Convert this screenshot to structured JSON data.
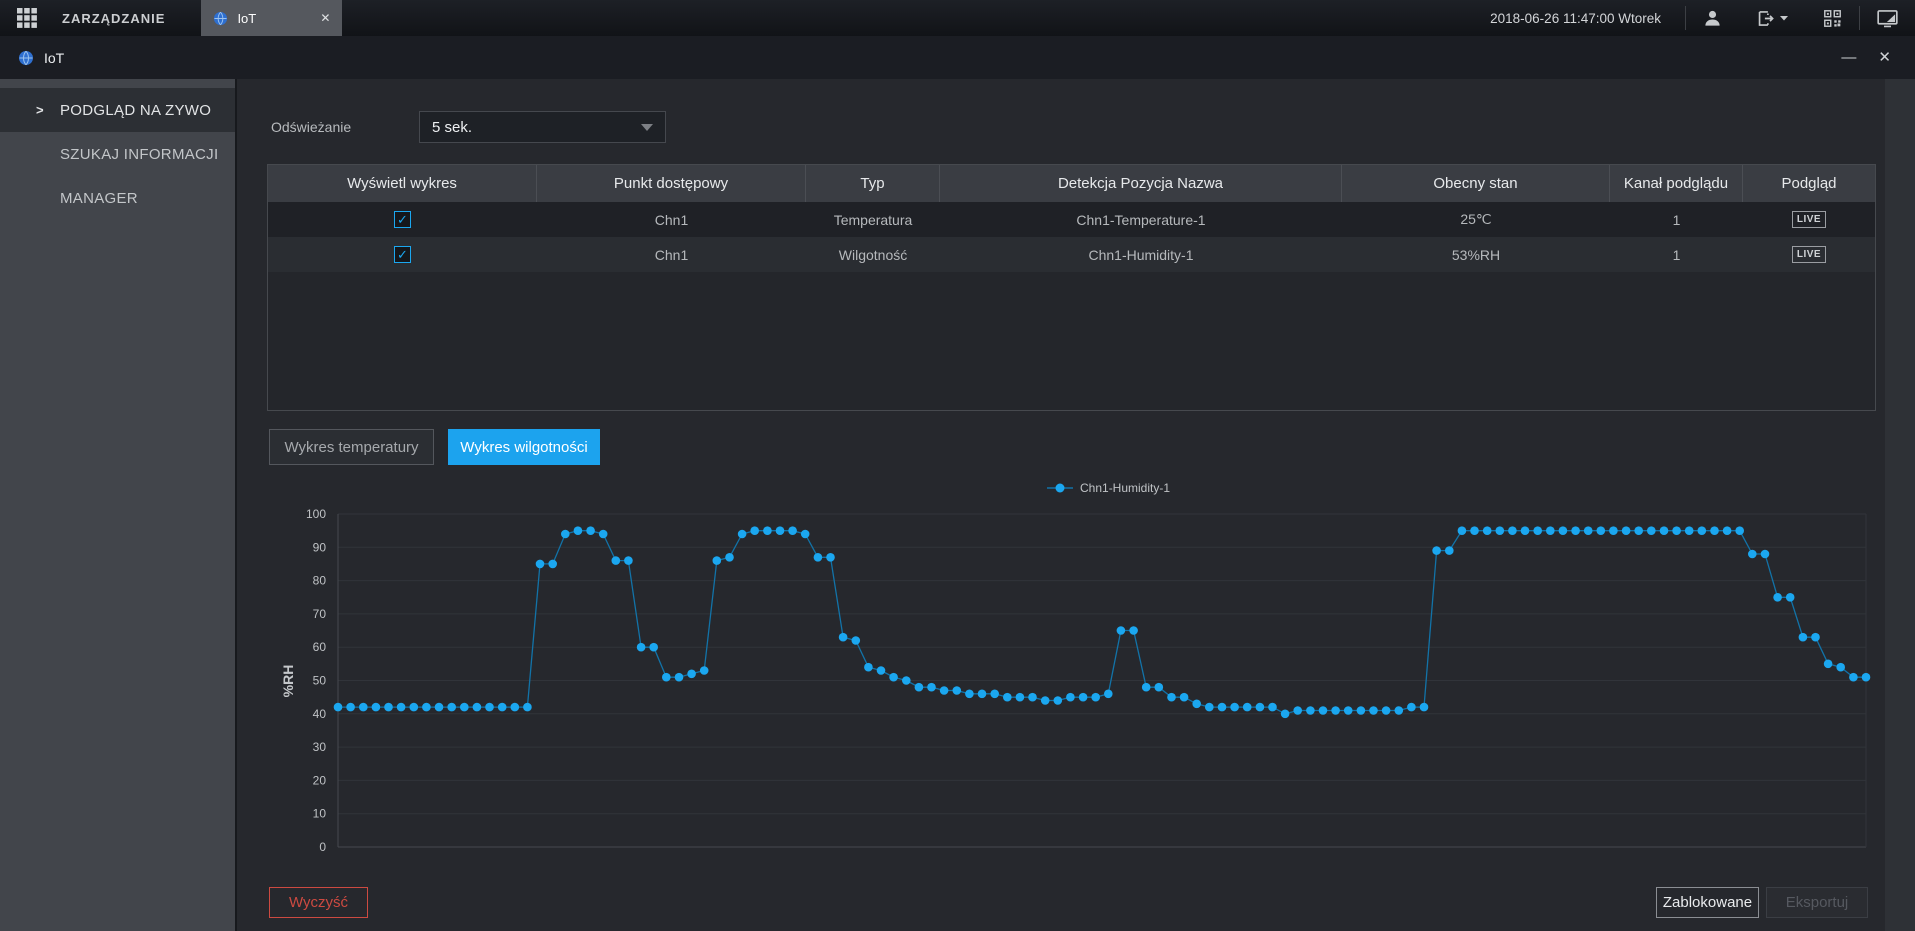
{
  "topbar": {
    "menu_label": "ZARZĄDZANIE",
    "tab_label": "IoT",
    "datetime": "2018-06-26 11:47:00 Wtorek"
  },
  "window": {
    "title": "IoT"
  },
  "sidebar": {
    "items": [
      {
        "label": "PODGLĄD NA ZYWO",
        "active": true
      },
      {
        "label": "SZUKAJ INFORMACJI",
        "active": false
      },
      {
        "label": "MANAGER",
        "active": false
      }
    ]
  },
  "refresh": {
    "label": "Odświeżanie",
    "value": "5 sek."
  },
  "table": {
    "headers": [
      "Wyświetl wykres",
      "Punkt dostępowy",
      "Typ",
      "Detekcja Pozycja Nazwa",
      "Obecny stan",
      "Kanał podglądu",
      "Podgląd"
    ],
    "rows": [
      {
        "checked": true,
        "access_point": "Chn1",
        "type": "Temperatura",
        "name": "Chn1-Temperature-1",
        "state": "25℃",
        "channel": "1",
        "preview": "LIVE"
      },
      {
        "checked": true,
        "access_point": "Chn1",
        "type": "Wilgotność",
        "name": "Chn1-Humidity-1",
        "state": "53%RH",
        "channel": "1",
        "preview": "LIVE"
      }
    ]
  },
  "chart_tabs": [
    {
      "label": "Wykres temperatury",
      "active": false
    },
    {
      "label": "Wykres wilgotności",
      "active": true
    }
  ],
  "chart_data": {
    "type": "line",
    "legend": [
      "Chn1-Humidity-1"
    ],
    "legend_position": "top-center",
    "ylabel": "%RH",
    "ylim": [
      0,
      100
    ],
    "yticks": [
      0,
      10,
      20,
      30,
      40,
      50,
      60,
      70,
      80,
      90,
      100
    ],
    "grid": true,
    "point_color": "#1ba7f0",
    "line_color": "#1273a8",
    "series": [
      {
        "name": "Chn1-Humidity-1",
        "values": [
          42,
          42,
          42,
          42,
          42,
          42,
          42,
          42,
          42,
          42,
          42,
          42,
          42,
          42,
          42,
          42,
          85,
          85,
          94,
          95,
          95,
          94,
          86,
          86,
          60,
          60,
          51,
          51,
          52,
          53,
          86,
          87,
          94,
          95,
          95,
          95,
          95,
          94,
          87,
          87,
          63,
          62,
          54,
          53,
          51,
          50,
          48,
          48,
          47,
          47,
          46,
          46,
          46,
          45,
          45,
          45,
          44,
          44,
          45,
          45,
          45,
          46,
          65,
          65,
          48,
          48,
          45,
          45,
          43,
          42,
          42,
          42,
          42,
          42,
          42,
          40,
          41,
          41,
          41,
          41,
          41,
          41,
          41,
          41,
          41,
          42,
          42,
          89,
          89,
          95,
          95,
          95,
          95,
          95,
          95,
          95,
          95,
          95,
          95,
          95,
          95,
          95,
          95,
          95,
          95,
          95,
          95,
          95,
          95,
          95,
          95,
          95,
          88,
          88,
          75,
          75,
          63,
          63,
          55,
          54,
          51,
          51
        ]
      }
    ]
  },
  "footer": {
    "clear_label": "Wyczyść",
    "locked_label": "Zablokowane",
    "export_label": "Eksportuj"
  },
  "colors": {
    "accent_blue": "#1ca3ee",
    "dot_blue": "#1ba7f0",
    "danger_red": "#cc4a41"
  }
}
